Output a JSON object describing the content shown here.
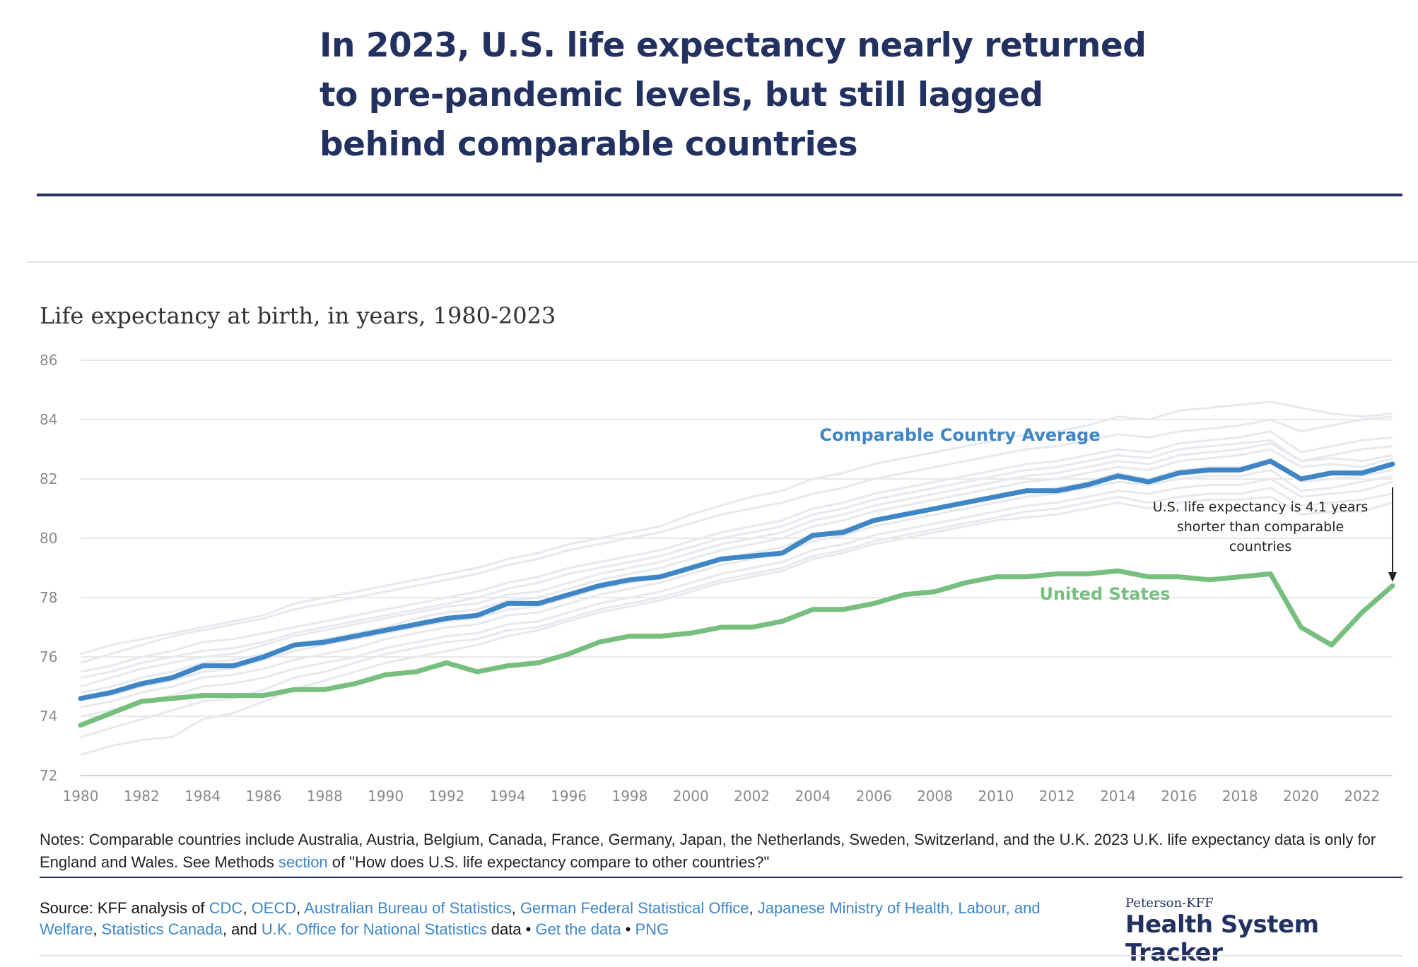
{
  "headline": "In 2023, U.S. life expectancy nearly returned to pre-pandemic levels, but still lagged behind comparable countries",
  "colors": {
    "headline": "#22315f",
    "comparable": "#3e86c6",
    "united_states": "#76bf7f",
    "background_countries": "#e6e9ee",
    "link": "#3d86c6"
  },
  "chart_data": {
    "type": "line",
    "title": "Life expectancy at birth, in years, 1980-2023",
    "xlabel": "",
    "ylabel": "",
    "x": [
      1980,
      1981,
      1982,
      1983,
      1984,
      1985,
      1986,
      1987,
      1988,
      1989,
      1990,
      1991,
      1992,
      1993,
      1994,
      1995,
      1996,
      1997,
      1998,
      1999,
      2000,
      2001,
      2002,
      2003,
      2004,
      2005,
      2006,
      2007,
      2008,
      2009,
      2010,
      2011,
      2012,
      2013,
      2014,
      2015,
      2016,
      2017,
      2018,
      2019,
      2020,
      2021,
      2022,
      2023
    ],
    "xlim": [
      1980,
      2023
    ],
    "ylim": [
      72,
      86
    ],
    "x_ticks": [
      "1980",
      "1982",
      "1984",
      "1986",
      "1988",
      "1990",
      "1992",
      "1994",
      "1996",
      "1998",
      "2000",
      "2002",
      "2004",
      "2006",
      "2008",
      "2010",
      "2012",
      "2014",
      "2016",
      "2018",
      "2020",
      "2022"
    ],
    "y_ticks": [
      "72",
      "74",
      "76",
      "78",
      "80",
      "82",
      "84",
      "86"
    ],
    "grid": "horizontal",
    "series": [
      {
        "name": "Comparable Country Average",
        "values": [
          74.6,
          74.8,
          75.1,
          75.3,
          75.7,
          75.7,
          76.0,
          76.4,
          76.5,
          76.7,
          76.9,
          77.1,
          77.3,
          77.4,
          77.8,
          77.8,
          78.1,
          78.4,
          78.6,
          78.7,
          79.0,
          79.3,
          79.4,
          79.5,
          80.1,
          80.2,
          80.6,
          80.8,
          81.0,
          81.2,
          81.4,
          81.6,
          81.6,
          81.8,
          82.1,
          81.9,
          82.2,
          82.3,
          82.3,
          82.6,
          82.0,
          82.2,
          82.2,
          82.5
        ]
      },
      {
        "name": "United States",
        "values": [
          73.7,
          74.1,
          74.5,
          74.6,
          74.7,
          74.7,
          74.7,
          74.9,
          74.9,
          75.1,
          75.4,
          75.5,
          75.8,
          75.5,
          75.7,
          75.8,
          76.1,
          76.5,
          76.7,
          76.7,
          76.8,
          77.0,
          77.0,
          77.2,
          77.6,
          77.6,
          77.8,
          78.1,
          78.2,
          78.5,
          78.7,
          78.7,
          78.8,
          78.8,
          78.9,
          78.7,
          78.7,
          78.6,
          78.7,
          78.8,
          77.0,
          76.4,
          77.5,
          78.4
        ]
      }
    ],
    "background_series": [
      {
        "values": [
          76.1,
          76.4,
          76.6,
          76.8,
          77.0,
          77.2,
          77.4,
          77.8,
          78.0,
          78.2,
          78.4,
          78.6,
          78.8,
          79.0,
          79.3,
          79.5,
          79.8,
          80.0,
          80.2,
          80.4,
          80.8,
          81.1,
          81.4,
          81.6,
          82.0,
          82.2,
          82.5,
          82.7,
          82.9,
          83.1,
          83.3,
          83.5,
          83.6,
          83.8,
          84.1,
          84.0,
          84.3,
          84.4,
          84.5,
          84.6,
          84.4,
          84.2,
          84.1,
          84.2
        ]
      },
      {
        "values": [
          75.8,
          76.1,
          76.4,
          76.7,
          76.9,
          77.1,
          77.3,
          77.6,
          77.8,
          78.0,
          78.2,
          78.4,
          78.6,
          78.8,
          79.1,
          79.3,
          79.6,
          79.8,
          80.0,
          80.2,
          80.5,
          80.8,
          81.0,
          81.2,
          81.5,
          81.7,
          82.0,
          82.2,
          82.4,
          82.6,
          82.8,
          83.0,
          83.1,
          83.3,
          83.5,
          83.4,
          83.6,
          83.7,
          83.8,
          84.0,
          83.6,
          83.8,
          84.0,
          84.1
        ]
      },
      {
        "values": [
          75.5,
          75.7,
          76.0,
          76.2,
          76.5,
          76.6,
          76.8,
          77.0,
          77.2,
          77.4,
          77.6,
          77.8,
          78.0,
          78.2,
          78.5,
          78.7,
          79.0,
          79.2,
          79.4,
          79.6,
          79.9,
          80.2,
          80.4,
          80.6,
          81.0,
          81.2,
          81.5,
          81.7,
          81.9,
          82.1,
          82.3,
          82.5,
          82.6,
          82.8,
          83.0,
          82.9,
          83.2,
          83.3,
          83.4,
          83.6,
          82.9,
          83.1,
          83.3,
          83.4
        ]
      },
      {
        "values": [
          75.3,
          75.5,
          75.8,
          76.0,
          76.2,
          76.3,
          76.5,
          76.8,
          77.0,
          77.2,
          77.4,
          77.6,
          77.8,
          78.0,
          78.3,
          78.5,
          78.8,
          79.0,
          79.2,
          79.4,
          79.7,
          80.0,
          80.2,
          80.4,
          80.8,
          81.0,
          81.3,
          81.5,
          81.7,
          81.9,
          82.1,
          82.3,
          82.4,
          82.6,
          82.8,
          82.7,
          83.0,
          83.1,
          83.2,
          83.3,
          82.6,
          82.8,
          83.0,
          83.1
        ]
      },
      {
        "values": [
          75.0,
          75.3,
          75.6,
          75.8,
          76.0,
          76.1,
          76.4,
          76.7,
          76.9,
          77.1,
          77.3,
          77.5,
          77.7,
          77.8,
          78.1,
          78.2,
          78.5,
          78.8,
          79.0,
          79.2,
          79.5,
          79.8,
          80.0,
          80.2,
          80.6,
          80.8,
          81.1,
          81.3,
          81.5,
          81.7,
          81.9,
          82.1,
          82.2,
          82.4,
          82.6,
          82.5,
          82.8,
          82.9,
          83.0,
          83.2,
          82.6,
          82.7,
          82.6,
          82.8
        ]
      },
      {
        "values": [
          74.8,
          75.0,
          75.3,
          75.5,
          75.8,
          75.9,
          76.1,
          76.4,
          76.6,
          76.8,
          77.0,
          77.3,
          77.5,
          77.6,
          77.9,
          78.0,
          78.3,
          78.6,
          78.8,
          79.0,
          79.3,
          79.6,
          79.8,
          80.0,
          80.4,
          80.6,
          80.9,
          81.1,
          81.3,
          81.5,
          81.7,
          81.9,
          82.0,
          82.2,
          82.4,
          82.3,
          82.6,
          82.7,
          82.8,
          83.0,
          82.4,
          82.5,
          82.4,
          82.7
        ]
      },
      {
        "values": [
          74.6,
          74.7,
          75.0,
          75.2,
          75.5,
          75.6,
          75.9,
          76.2,
          76.4,
          76.6,
          76.8,
          77.0,
          77.2,
          77.3,
          77.6,
          77.7,
          78.0,
          78.3,
          78.5,
          78.7,
          79.0,
          79.3,
          79.5,
          79.7,
          80.1,
          80.3,
          80.6,
          80.8,
          81.0,
          81.2,
          81.4,
          81.6,
          81.7,
          81.9,
          82.2,
          82.0,
          82.3,
          82.4,
          82.4,
          82.6,
          81.9,
          82.0,
          82.1,
          82.3
        ]
      },
      {
        "values": [
          74.3,
          74.5,
          74.8,
          75.0,
          75.3,
          75.4,
          75.6,
          75.9,
          76.1,
          76.3,
          76.6,
          76.8,
          77.0,
          77.1,
          77.4,
          77.5,
          77.8,
          78.1,
          78.3,
          78.5,
          78.8,
          79.1,
          79.3,
          79.5,
          79.9,
          80.1,
          80.4,
          80.6,
          80.8,
          81.0,
          81.2,
          81.4,
          81.5,
          81.7,
          81.9,
          81.8,
          82.0,
          82.1,
          82.1,
          82.3,
          81.6,
          81.7,
          81.9,
          82.1
        ]
      },
      {
        "values": [
          74.0,
          74.2,
          74.5,
          74.7,
          75.0,
          75.1,
          75.3,
          75.6,
          75.8,
          76.0,
          76.3,
          76.5,
          76.7,
          76.8,
          77.1,
          77.2,
          77.5,
          77.8,
          78.0,
          78.2,
          78.5,
          78.8,
          79.0,
          79.2,
          79.6,
          79.8,
          80.1,
          80.3,
          80.5,
          80.7,
          80.9,
          81.1,
          81.2,
          81.4,
          81.6,
          81.5,
          81.7,
          81.8,
          81.8,
          82.0,
          81.4,
          81.5,
          81.6,
          81.9
        ]
      },
      {
        "values": [
          73.3,
          73.6,
          73.9,
          74.2,
          74.5,
          74.6,
          74.9,
          75.3,
          75.5,
          75.8,
          76.1,
          76.3,
          76.5,
          76.6,
          76.9,
          77.0,
          77.3,
          77.6,
          77.8,
          78.0,
          78.3,
          78.6,
          78.8,
          79.0,
          79.4,
          79.6,
          79.9,
          80.1,
          80.3,
          80.5,
          80.7,
          80.9,
          81.0,
          81.2,
          81.4,
          81.2,
          81.4,
          81.5,
          81.5,
          81.7,
          81.1,
          81.2,
          81.3,
          81.5
        ]
      },
      {
        "values": [
          72.7,
          73.0,
          73.2,
          73.3,
          73.9,
          74.1,
          74.5,
          74.9,
          75.2,
          75.5,
          75.8,
          76.0,
          76.2,
          76.4,
          76.7,
          76.9,
          77.2,
          77.5,
          77.7,
          77.9,
          78.2,
          78.5,
          78.7,
          78.9,
          79.3,
          79.5,
          79.8,
          80.0,
          80.2,
          80.4,
          80.6,
          80.7,
          80.8,
          81.0,
          81.2,
          81.0,
          81.2,
          81.3,
          81.3,
          81.4,
          80.8,
          80.9,
          80.9,
          81.2
        ]
      }
    ],
    "annotations": {
      "comparable_label": "Comparable Country Average",
      "us_label": "United States",
      "gap_note": [
        "U.S. life expectancy is 4.1 years",
        "shorter than comparable",
        "countries"
      ]
    }
  },
  "notes": {
    "prefix": "Notes: Comparable countries include Australia, Austria, Belgium, Canada, France, Germany, Japan, the Netherlands, Sweden, Switzerland, and the U.K. 2023 U.K. life expectancy data is only for England and Wales. See Methods ",
    "link": "section",
    "suffix": " of \"How does U.S. life expectancy compare to other countries?\""
  },
  "source": {
    "prefix": "Source: KFF analysis of ",
    "links": [
      "CDC",
      "OECD",
      "Australian Bureau of Statistics",
      "German Federal Statistical Office",
      "Japanese Ministry of Health, Labour, and Welfare",
      "Statistics Canada",
      "U.K. Office for National Statistics",
      "Get the data",
      "PNG"
    ],
    "sep_comma": ", ",
    "sep_and": ", and ",
    "data_word": " data • ",
    "bullet": " • "
  },
  "logo": {
    "top": "Peterson-KFF",
    "main": "Health System Tracker"
  }
}
